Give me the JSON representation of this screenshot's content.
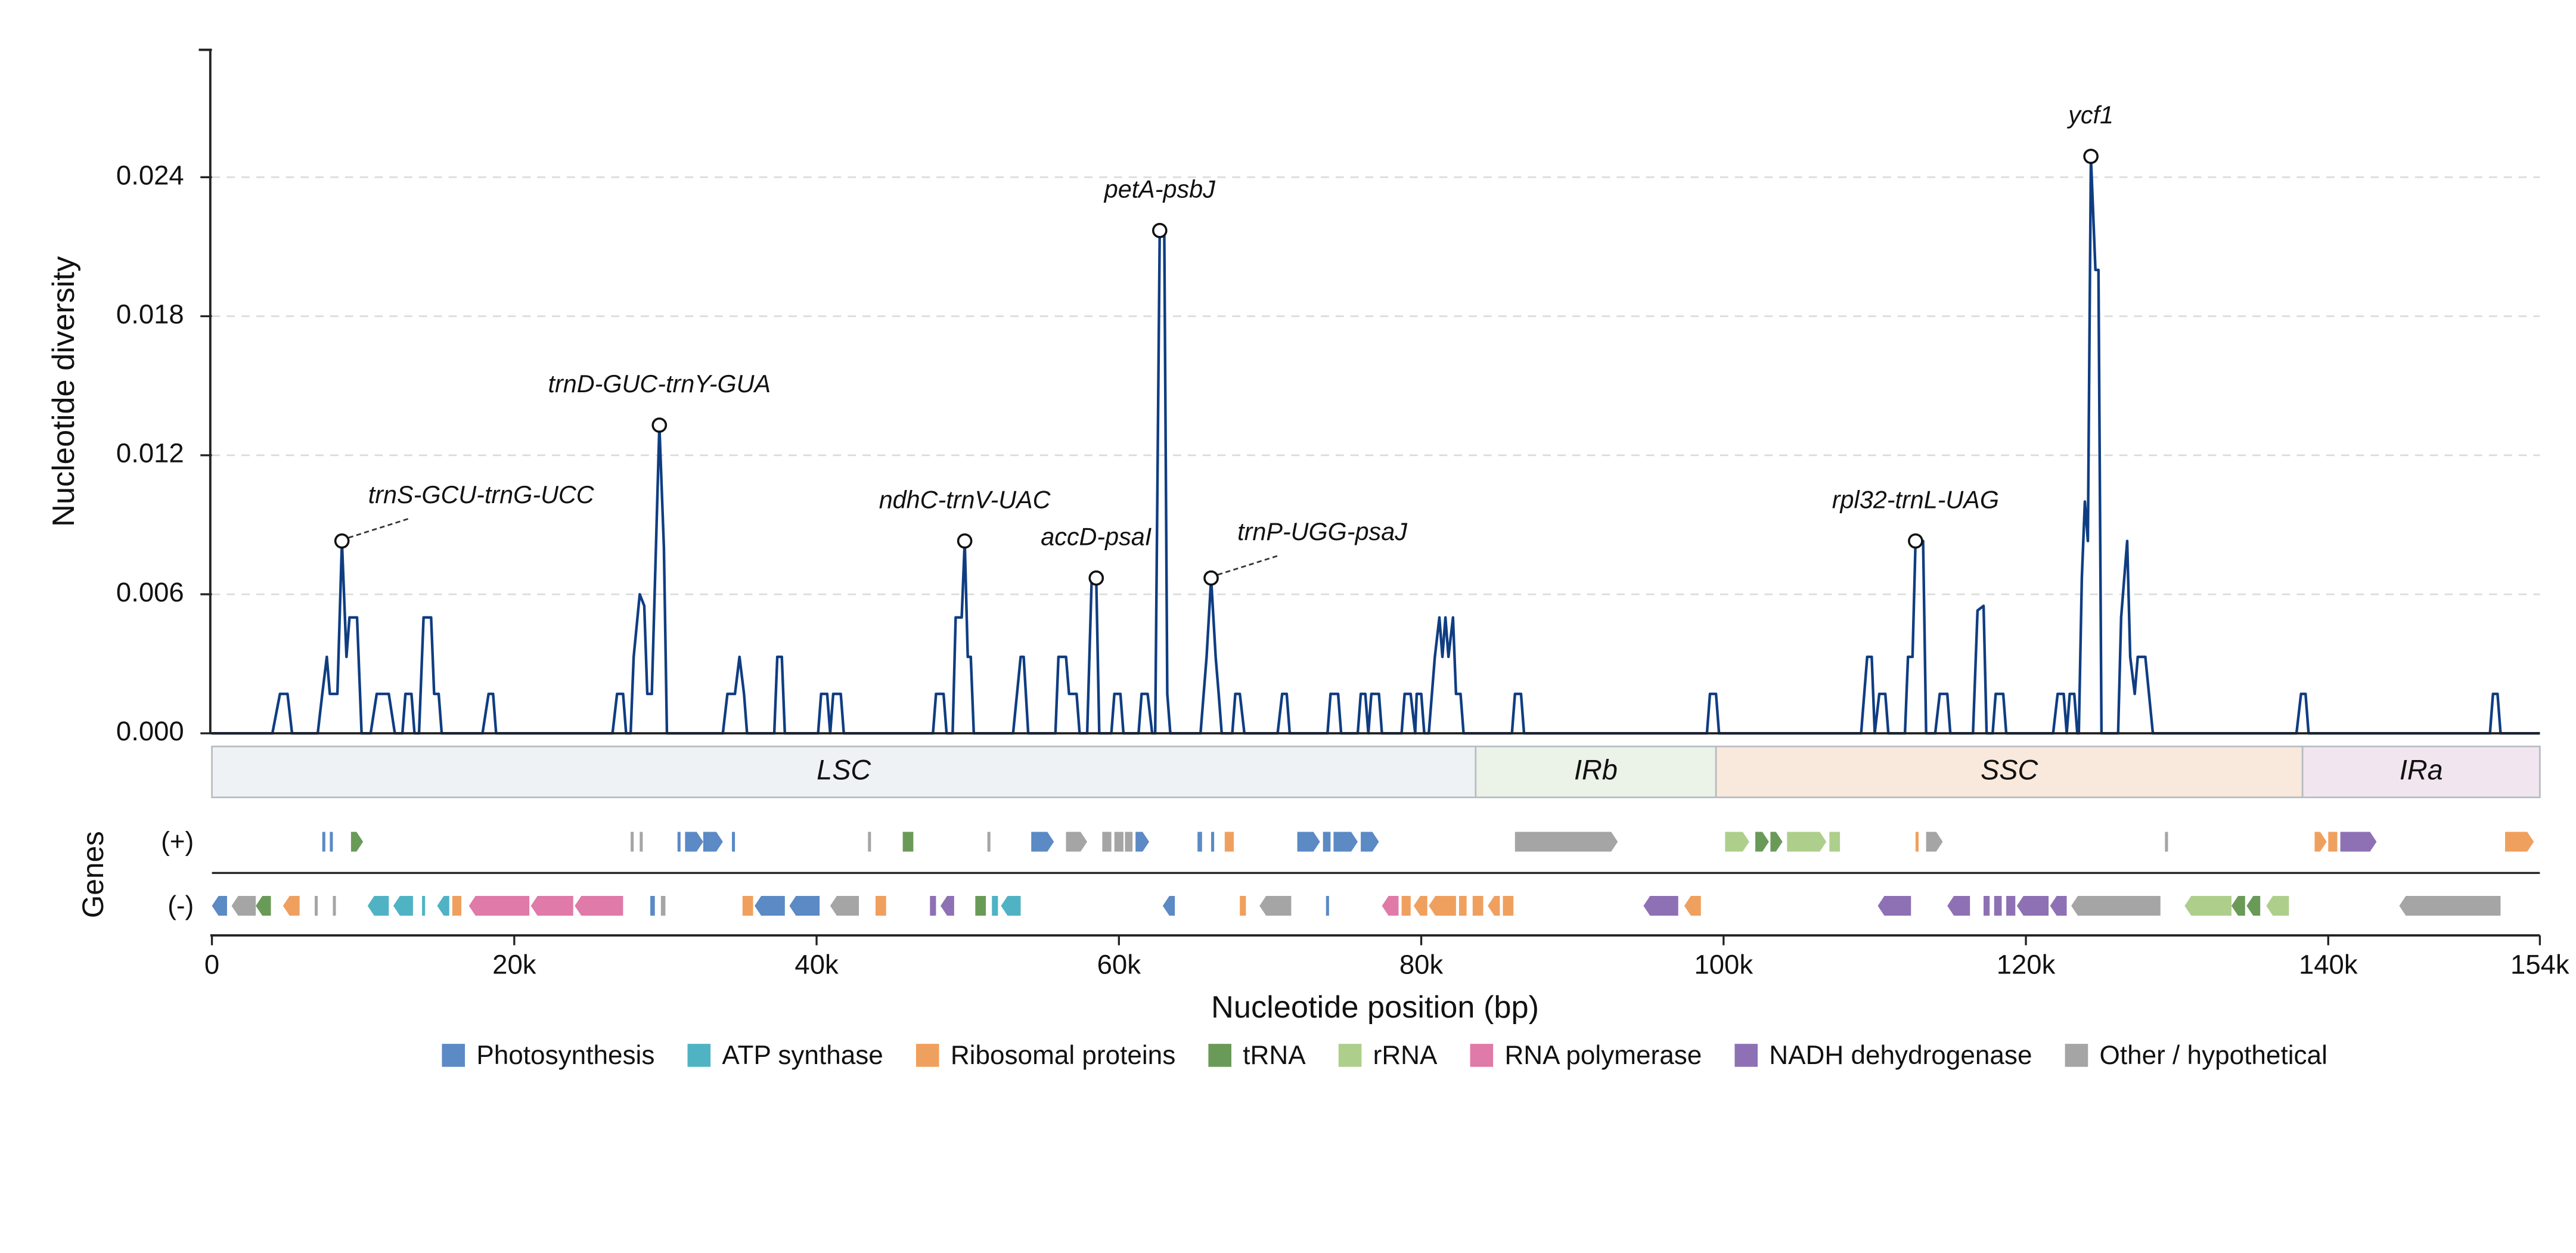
{
  "chart_data": {
    "type": "line",
    "ylabel": "Nucleotide diversity",
    "xlabel": "Nucleotide position (bp)",
    "xlim": [
      0,
      154000
    ],
    "ylim": [
      0,
      0.0295
    ],
    "xticks": [
      0,
      {
        "value": 20000,
        "label": "20k"
      },
      {
        "value": 40000,
        "label": "40k"
      },
      {
        "value": 60000,
        "label": "60k"
      },
      {
        "value": 80000,
        "label": "80k"
      },
      {
        "value": 100000,
        "label": "100k"
      },
      {
        "value": 120000,
        "label": "120k"
      },
      {
        "value": 140000,
        "label": "140k"
      },
      {
        "value": 154000,
        "label": "154k"
      }
    ],
    "yticks": [
      {
        "value": 0,
        "label": "0.000"
      },
      0.006,
      0.012,
      0.018,
      0.024
    ],
    "grid": true,
    "series": [
      {
        "color": "#0f3d82",
        "x": [
          0,
          4000,
          4500,
          5000,
          5300,
          7000,
          7300,
          7600,
          7800,
          8300,
          8600,
          8900,
          9100,
          9600,
          9900,
          10500,
          10900,
          11700,
          12100,
          12600,
          12800,
          13200,
          13400,
          13700,
          14000,
          14500,
          14700,
          15000,
          15200,
          17900,
          18300,
          18600,
          18800,
          26500,
          26800,
          27200,
          27400,
          27700,
          27900,
          28300,
          28600,
          28800,
          29100,
          29600,
          29900,
          30100,
          33800,
          34100,
          34600,
          34900,
          35200,
          35400,
          37200,
          37400,
          37700,
          37900,
          40100,
          40300,
          40700,
          40900,
          41100,
          41600,
          41800,
          47700,
          47900,
          48400,
          48600,
          49000,
          49200,
          49600,
          49800,
          50000,
          50200,
          50400,
          53000,
          53500,
          53700,
          54000,
          55800,
          56000,
          56500,
          56700,
          57200,
          57400,
          57900,
          58200,
          58500,
          58700,
          59500,
          59700,
          60100,
          60300,
          61300,
          61500,
          61900,
          62200,
          62400,
          62700,
          63000,
          63200,
          63400,
          65400,
          65800,
          66100,
          66400,
          66600,
          66800,
          67500,
          67700,
          68000,
          68300,
          70500,
          70800,
          71100,
          71300,
          73800,
          74000,
          74500,
          74700,
          75800,
          76000,
          76300,
          76500,
          76700,
          77200,
          77400,
          78700,
          78900,
          79300,
          79600,
          79700,
          80000,
          80200,
          80500,
          80900,
          81200,
          81400,
          81600,
          81800,
          82100,
          82300,
          82600,
          82800,
          86000,
          86200,
          86600,
          86800,
          98900,
          99100,
          99500,
          99700,
          109100,
          109500,
          109800,
          110000,
          110300,
          110700,
          110900,
          112000,
          112200,
          112500,
          112700,
          113200,
          113400,
          114000,
          114300,
          114800,
          115000,
          116500,
          116800,
          117200,
          117400,
          117800,
          118000,
          118500,
          118700,
          121800,
          122100,
          122500,
          122700,
          122900,
          123200,
          123400,
          123500,
          123700,
          123900,
          124100,
          124300,
          124600,
          124800,
          125000,
          126100,
          126300,
          126700,
          126900,
          127200,
          127400,
          127900,
          128400,
          137900,
          138200,
          138500,
          138700,
          150700,
          150900,
          151200,
          151400,
          154000
        ],
        "values": [
          0,
          0,
          0.0017,
          0.0017,
          0,
          0,
          0.0017,
          0.0033,
          0.0017,
          0.0017,
          0.0083,
          0.0033,
          0.005,
          0.005,
          0,
          0,
          0.0017,
          0.0017,
          0,
          0,
          0.0017,
          0.0017,
          0,
          0,
          0.005,
          0.005,
          0.0017,
          0.0017,
          0,
          0,
          0.0017,
          0.0017,
          0,
          0,
          0.0017,
          0.0017,
          0,
          0,
          0.0033,
          0.006,
          0.0055,
          0.0017,
          0.0017,
          0.0133,
          0.008,
          0,
          0,
          0.0017,
          0.0017,
          0.0033,
          0.0017,
          0,
          0,
          0.0033,
          0.0033,
          0,
          0,
          0.0017,
          0.0017,
          0,
          0.0017,
          0.0017,
          0,
          0,
          0.0017,
          0.0017,
          0,
          0,
          0.005,
          0.005,
          0.0083,
          0.0033,
          0.0033,
          0,
          0,
          0.0033,
          0.0033,
          0,
          0,
          0.0033,
          0.0033,
          0.0017,
          0.0017,
          0,
          0,
          0.0067,
          0.0067,
          0,
          0,
          0.0017,
          0.0017,
          0,
          0,
          0.0017,
          0.0017,
          0,
          0,
          0.0217,
          0.0217,
          0.0017,
          0,
          0,
          0.0033,
          0.0067,
          0.0033,
          0.0017,
          0,
          0,
          0.0017,
          0.0017,
          0,
          0,
          0.0017,
          0.0017,
          0,
          0,
          0.0017,
          0.0017,
          0,
          0,
          0.0017,
          0.0017,
          0,
          0.0017,
          0.0017,
          0,
          0,
          0.0017,
          0.0017,
          0,
          0.0017,
          0.0017,
          0,
          0,
          0.0033,
          0.005,
          0.0033,
          0.005,
          0.0033,
          0.005,
          0.0017,
          0.0017,
          0,
          0,
          0.0017,
          0.0017,
          0,
          0,
          0.0017,
          0.0017,
          0,
          0,
          0.0033,
          0.0033,
          0,
          0.0017,
          0.0017,
          0,
          0,
          0.0033,
          0.0033,
          0.0083,
          0.0083,
          0,
          0,
          0.0017,
          0.0017,
          0,
          0,
          0.0053,
          0.0055,
          0,
          0,
          0.0017,
          0.0017,
          0,
          0,
          0.0017,
          0.0017,
          0,
          0.0017,
          0.0017,
          0,
          0,
          0.0067,
          0.01,
          0.0083,
          0.0249,
          0.02,
          0.02,
          0,
          0,
          0.005,
          0.0083,
          0.0033,
          0.0017,
          0.0033,
          0.0033,
          0,
          0,
          0.0017,
          0.0017,
          0,
          0,
          0.0017,
          0.0017,
          0,
          0
        ]
      }
    ],
    "annotations": [
      {
        "label": "trnS-GCU-trnG-UCC",
        "x": 8600,
        "y": 0.0083
      },
      {
        "label": "trnD-GUC-trnY-GUA",
        "x": 29600,
        "y": 0.0133
      },
      {
        "label": "ndhC-trnV-UAC",
        "x": 49800,
        "y": 0.0083
      },
      {
        "label": "accD-psaI",
        "x": 58500,
        "y": 0.0067
      },
      {
        "label": "petA-psbJ",
        "x": 62700,
        "y": 0.0217
      },
      {
        "label": "trnP-UGG-psaJ",
        "x": 66100,
        "y": 0.0067
      },
      {
        "label": "rpl32-trnL-UAG",
        "x": 112700,
        "y": 0.0083
      },
      {
        "label": "ycf1",
        "x": 124300,
        "y": 0.0249
      }
    ],
    "regions": [
      {
        "label": "LSC",
        "start": 0,
        "end": 83600,
        "color": "#eef2f5"
      },
      {
        "label": "IRb",
        "start": 83600,
        "end": 99500,
        "color": "#ebf2e8"
      },
      {
        "label": "SSC",
        "start": 99500,
        "end": 138300,
        "color": "#f8e9dc"
      },
      {
        "label": "IRa",
        "start": 138300,
        "end": 154000,
        "color": "#f1e6f0"
      }
    ],
    "genes_label": "Genes",
    "gene_categories": [
      {
        "name": "Photosynthesis",
        "color": "#5b8ac4"
      },
      {
        "name": "ATP synthase",
        "color": "#4fb3c4"
      },
      {
        "name": "Ribosomal proteins",
        "color": "#f0a05e"
      },
      {
        "name": "tRNA",
        "color": "#6a9a58"
      },
      {
        "name": "rRNA",
        "color": "#aecf8c"
      },
      {
        "name": "RNA polymerase",
        "color": "#e07aa8"
      },
      {
        "name": "NADH dehydrogenase",
        "color": "#8e71b4"
      },
      {
        "name": "Other / hypothetical",
        "color": "#a5a5a5"
      }
    ],
    "tracks": [
      {
        "label": "(+)",
        "genes": [
          [
            7300,
            7500,
            0
          ],
          [
            7800,
            8000,
            0
          ],
          [
            9200,
            10000,
            3
          ],
          [
            27700,
            27900,
            7
          ],
          [
            28300,
            28500,
            7
          ],
          [
            30800,
            31000,
            0
          ],
          [
            31300,
            32500,
            0
          ],
          [
            32500,
            33800,
            0
          ],
          [
            34400,
            34600,
            0
          ],
          [
            43400,
            43600,
            7
          ],
          [
            45700,
            46400,
            3
          ],
          [
            51300,
            51500,
            7
          ],
          [
            54200,
            55700,
            0
          ],
          [
            56500,
            57900,
            7
          ],
          [
            58900,
            59500,
            7
          ],
          [
            59700,
            60300,
            7
          ],
          [
            60400,
            60900,
            7
          ],
          [
            61100,
            62000,
            0
          ],
          [
            65200,
            65500,
            0
          ],
          [
            66100,
            66300,
            0
          ],
          [
            67000,
            67600,
            2
          ],
          [
            71800,
            73300,
            0
          ],
          [
            73500,
            74000,
            0
          ],
          [
            74200,
            75800,
            0
          ],
          [
            76000,
            77200,
            0
          ],
          [
            86200,
            93000,
            7
          ],
          [
            100100,
            101700,
            4
          ],
          [
            102100,
            103000,
            3
          ],
          [
            103100,
            103900,
            3
          ],
          [
            104200,
            106800,
            4
          ],
          [
            107000,
            107700,
            4
          ],
          [
            112700,
            112900,
            2
          ],
          [
            113400,
            114500,
            7
          ],
          [
            129200,
            129400,
            7
          ],
          [
            139100,
            139900,
            2
          ],
          [
            140000,
            140600,
            2
          ],
          [
            140800,
            143200,
            6
          ],
          [
            151700,
            153600,
            2
          ]
        ]
      },
      {
        "label": "(-)",
        "genes": [
          [
            0,
            1000,
            0
          ],
          [
            1300,
            2900,
            7
          ],
          [
            2900,
            3900,
            3
          ],
          [
            4700,
            5800,
            2
          ],
          [
            6800,
            7000,
            7
          ],
          [
            8000,
            8200,
            7
          ],
          [
            10300,
            11700,
            1
          ],
          [
            12000,
            13300,
            1
          ],
          [
            13900,
            14100,
            1
          ],
          [
            14900,
            15700,
            1
          ],
          [
            15900,
            16500,
            2
          ],
          [
            17000,
            21000,
            5
          ],
          [
            21100,
            23900,
            5
          ],
          [
            24000,
            27200,
            5
          ],
          [
            29000,
            29300,
            0
          ],
          [
            29700,
            30000,
            7
          ],
          [
            35100,
            35800,
            2
          ],
          [
            35900,
            37900,
            0
          ],
          [
            38200,
            40200,
            0
          ],
          [
            40900,
            42800,
            7
          ],
          [
            43900,
            44600,
            2
          ],
          [
            47500,
            47900,
            6
          ],
          [
            48200,
            49100,
            6
          ],
          [
            50500,
            51200,
            3
          ],
          [
            51600,
            52000,
            1
          ],
          [
            52200,
            53500,
            1
          ],
          [
            62900,
            63700,
            0
          ],
          [
            68000,
            68400,
            2
          ],
          [
            69300,
            71400,
            7
          ],
          [
            73700,
            73900,
            0
          ],
          [
            77400,
            78500,
            5
          ],
          [
            78700,
            79300,
            2
          ],
          [
            79500,
            80400,
            2
          ],
          [
            80500,
            82300,
            2
          ],
          [
            82500,
            83000,
            2
          ],
          [
            83400,
            84100,
            2
          ],
          [
            84400,
            85200,
            2
          ],
          [
            85400,
            86100,
            2
          ],
          [
            94700,
            97000,
            6
          ],
          [
            97400,
            98500,
            2
          ],
          [
            110200,
            112400,
            6
          ],
          [
            114800,
            116300,
            6
          ],
          [
            117200,
            117600,
            6
          ],
          [
            117900,
            118400,
            6
          ],
          [
            118700,
            119300,
            6
          ],
          [
            119400,
            121500,
            6
          ],
          [
            121600,
            122700,
            6
          ],
          [
            123000,
            128900,
            7
          ],
          [
            130500,
            133600,
            4
          ],
          [
            133600,
            134500,
            3
          ],
          [
            134600,
            135500,
            3
          ],
          [
            135900,
            137400,
            4
          ],
          [
            144700,
            151400,
            7
          ]
        ]
      }
    ]
  }
}
